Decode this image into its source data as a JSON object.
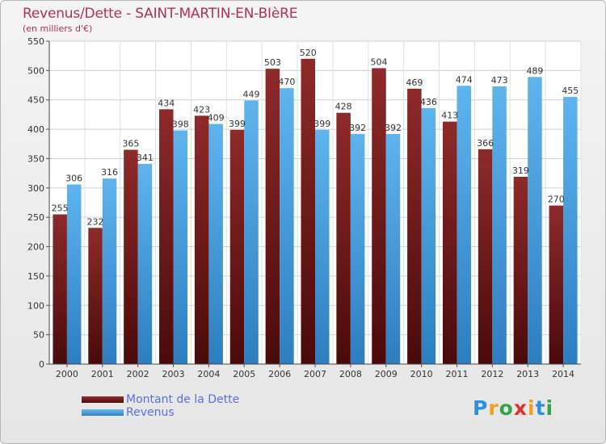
{
  "header": {
    "title": "Revenus/Dette - SAINT-MARTIN-EN-BIèRE",
    "subtitle": "(en milliers d'€)"
  },
  "legend": {
    "items": [
      {
        "label": "Montant de la Dette",
        "color": "#7a1e1e"
      },
      {
        "label": "Revenus",
        "color": "#4aa3e0"
      }
    ]
  },
  "logo": {
    "text": "Proxiti",
    "letters": [
      "P",
      "r",
      "o",
      "x",
      "i",
      "t",
      "i"
    ]
  },
  "chart_data": {
    "type": "bar",
    "categories": [
      "2000",
      "2001",
      "2002",
      "2003",
      "2004",
      "2005",
      "2006",
      "2007",
      "2008",
      "2009",
      "2010",
      "2011",
      "2012",
      "2013",
      "2014"
    ],
    "series": [
      {
        "name": "Montant de la Dette",
        "color": "#7a1e1e",
        "values": [
          255,
          232,
          365,
          434,
          423,
          399,
          503,
          520,
          428,
          504,
          469,
          413,
          366,
          319,
          270
        ]
      },
      {
        "name": "Revenus",
        "color": "#4aa3e0",
        "values": [
          306,
          316,
          341,
          398,
          409,
          449,
          470,
          399,
          392,
          392,
          436,
          474,
          473,
          489,
          455
        ]
      }
    ],
    "ylim": [
      0,
      550
    ],
    "yticks": [
      0,
      50,
      100,
      150,
      200,
      250,
      300,
      350,
      400,
      450,
      500,
      550
    ],
    "grid": true,
    "legend_position": "bottom-left"
  }
}
